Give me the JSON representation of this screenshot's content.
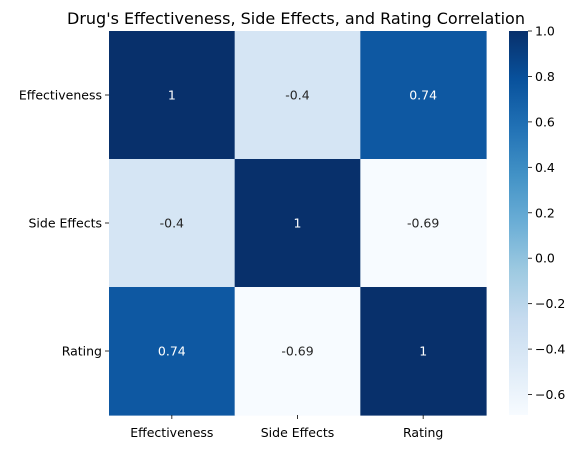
{
  "chart_data": {
    "type": "heatmap",
    "title": "Drug's Effectiveness, Side Effects, and Rating Correlation",
    "row_labels": [
      "Effectiveness",
      "Side Effects",
      "Rating"
    ],
    "col_labels": [
      "Effectiveness",
      "Side Effects",
      "Rating"
    ],
    "values": [
      [
        1,
        -0.4,
        0.74
      ],
      [
        -0.4,
        1,
        -0.69
      ],
      [
        0.74,
        -0.69,
        1
      ]
    ],
    "annotations": [
      [
        "1",
        "-0.4",
        "0.74"
      ],
      [
        "-0.4",
        "1",
        "-0.69"
      ],
      [
        "0.74",
        "-0.69",
        "1"
      ]
    ],
    "colormap": "Blues",
    "vmin": -0.69,
    "vmax": 1,
    "colorbar_ticks": [
      1.0,
      0.8,
      0.6,
      0.4,
      0.2,
      0.0,
      -0.2,
      -0.4,
      -0.6
    ],
    "colorbar_tick_labels": [
      "1.0",
      "0.8",
      "0.6",
      "0.4",
      "0.2",
      "0.0",
      "−0.2",
      "−0.4",
      "−0.6"
    ],
    "colorbar_position": "right",
    "grid": false
  }
}
